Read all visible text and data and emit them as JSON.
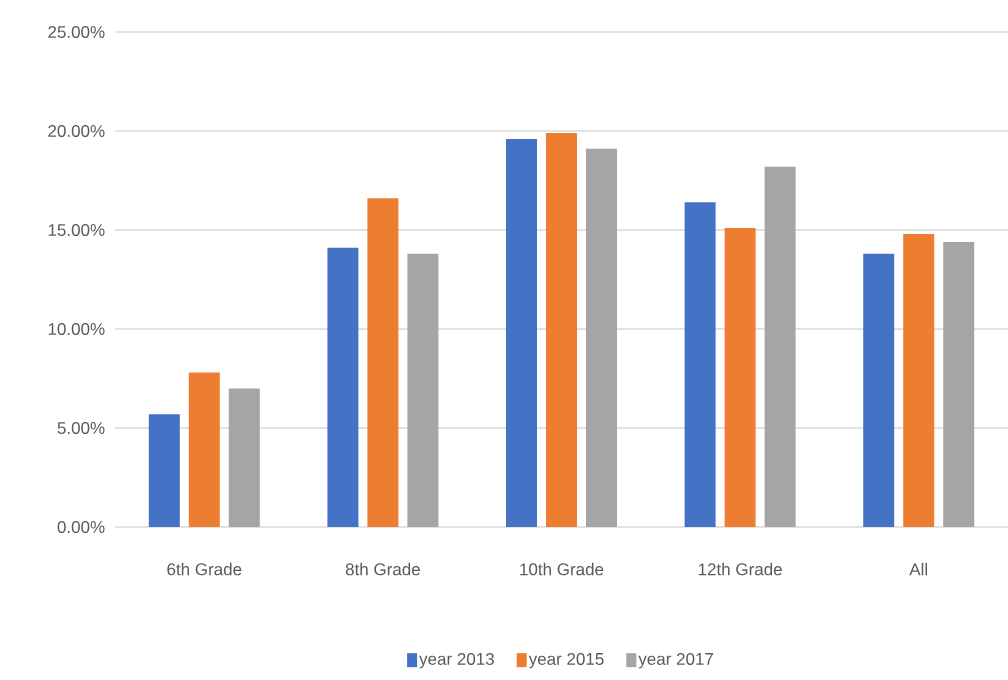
{
  "chart_data": {
    "type": "bar",
    "categories": [
      "6th Grade",
      "8th Grade",
      "10th Grade",
      "12th Grade",
      "All"
    ],
    "series": [
      {
        "name": "year 2013",
        "color": "#4472c4",
        "values": [
          5.7,
          14.1,
          19.6,
          16.4,
          13.8
        ]
      },
      {
        "name": "year 2015",
        "color": "#ed7d31",
        "values": [
          7.8,
          16.6,
          19.9,
          15.1,
          14.8
        ]
      },
      {
        "name": "year 2017",
        "color": "#a5a5a5",
        "values": [
          7.0,
          13.8,
          19.1,
          18.2,
          14.4
        ]
      }
    ],
    "ylim": [
      0,
      25
    ],
    "yticks": [
      {
        "value": 0,
        "label": "0.00%"
      },
      {
        "value": 5,
        "label": "5.00%"
      },
      {
        "value": 10,
        "label": "10.00%"
      },
      {
        "value": 15,
        "label": "15.00%"
      },
      {
        "value": 20,
        "label": "20.00%"
      },
      {
        "value": 25,
        "label": "25.00%"
      }
    ],
    "grid": "y",
    "legend": "bottom"
  }
}
